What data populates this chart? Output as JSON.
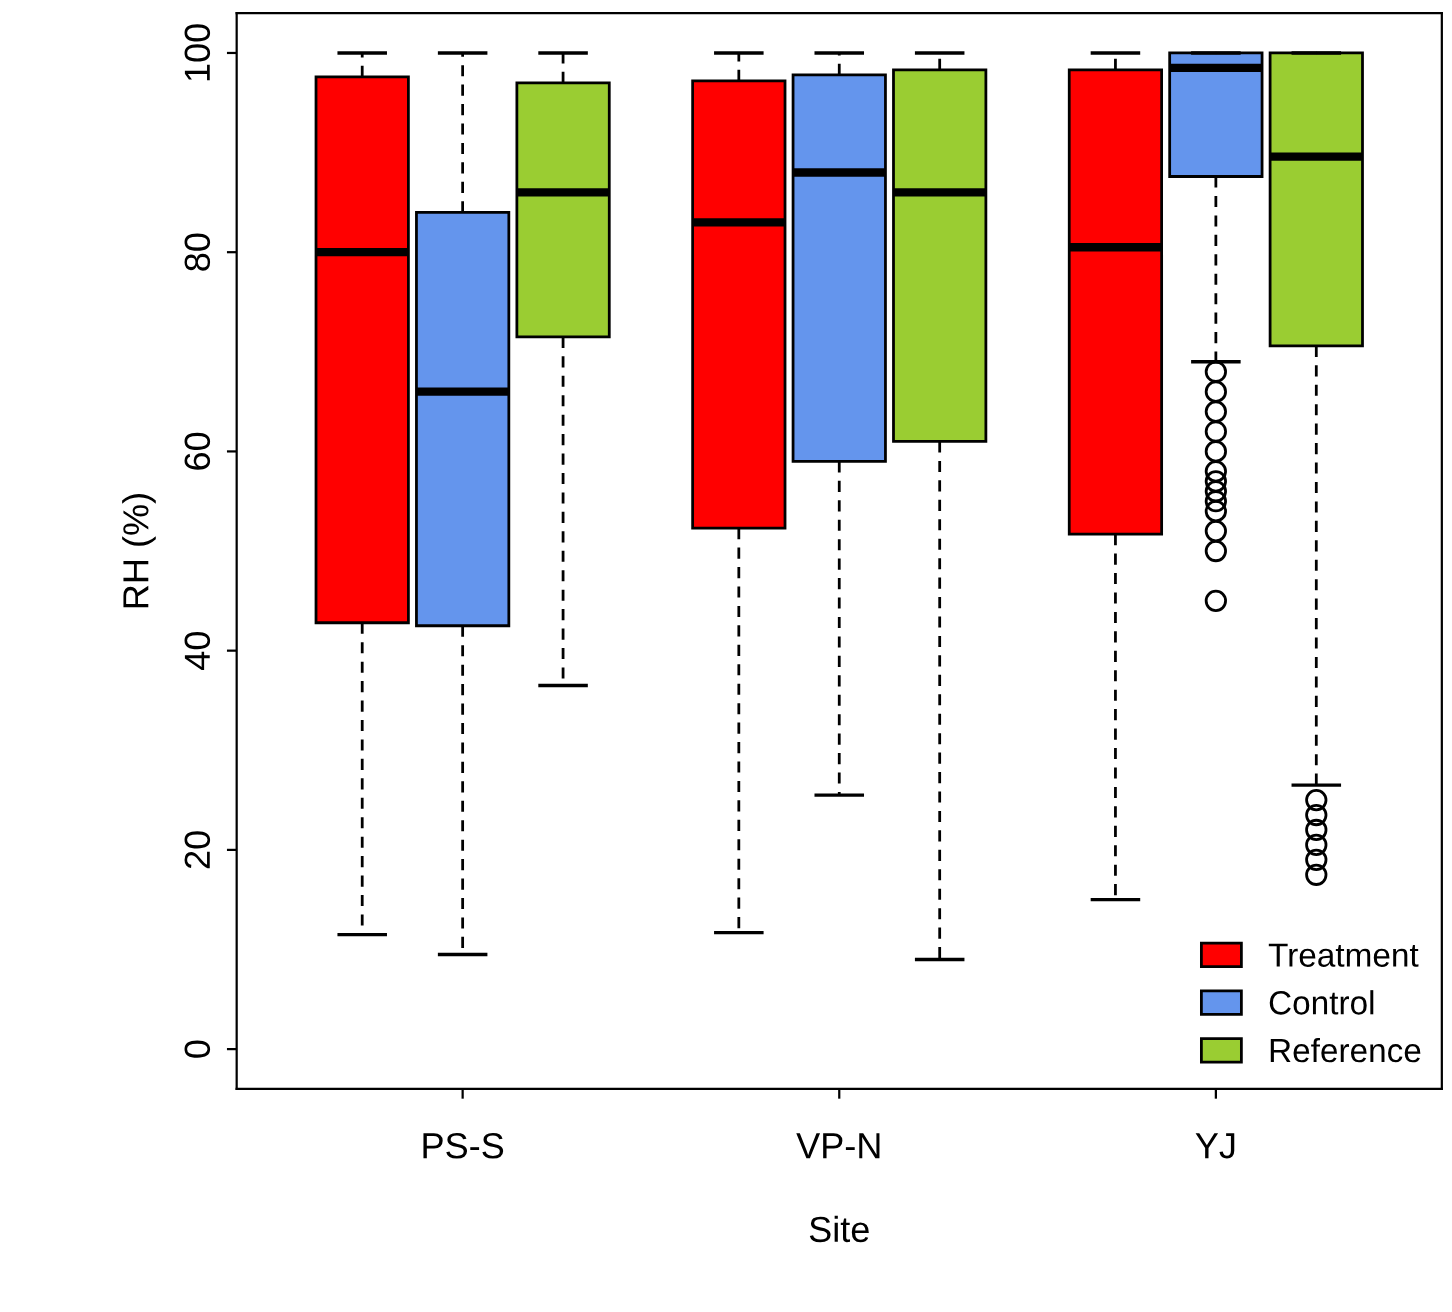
{
  "chart_data": {
    "type": "box",
    "xlabel": "Site",
    "ylabel": "RH (%)",
    "categories": [
      "PS-S",
      "VP-N",
      "YJ"
    ],
    "ylim": [
      -4,
      104
    ],
    "yticks": [
      0,
      20,
      40,
      60,
      80,
      100
    ],
    "grid": false,
    "legend": "bottom right",
    "series": [
      {
        "name": "Treatment",
        "color": "#ff0000",
        "boxes": [
          {
            "low": 11.5,
            "q1": 42.8,
            "median": 80,
            "q3": 97.6,
            "high": 100
          },
          {
            "low": 11.7,
            "q1": 52.3,
            "median": 83,
            "q3": 97.2,
            "high": 100
          },
          {
            "low": 15,
            "q1": 51.7,
            "median": 80.5,
            "q3": 98.3,
            "high": 100
          }
        ]
      },
      {
        "name": "Control",
        "color": "#6495ed",
        "boxes": [
          {
            "low": 9.5,
            "q1": 42.5,
            "median": 66,
            "q3": 84,
            "high": 100
          },
          {
            "low": 25.5,
            "q1": 59,
            "median": 88,
            "q3": 97.8,
            "high": 100
          },
          {
            "low": 69,
            "q1": 87.6,
            "median": 98.5,
            "q3": 100,
            "high": 100,
            "outliers": [
              45,
              50,
              52,
              54,
              55,
              56,
              57,
              58,
              60,
              62,
              64,
              66,
              68
            ]
          }
        ]
      },
      {
        "name": "Reference",
        "color": "#9acd32",
        "boxes": [
          {
            "low": 36.5,
            "q1": 71.5,
            "median": 86,
            "q3": 97,
            "high": 100
          },
          {
            "low": 9,
            "q1": 61,
            "median": 86,
            "q3": 98.3,
            "high": 100
          },
          {
            "low": 26.5,
            "q1": 70.6,
            "median": 89.6,
            "q3": 100,
            "high": 100,
            "outliers": [
              17.5,
              19,
              20.5,
              22,
              23.5,
              25
            ]
          }
        ]
      }
    ]
  }
}
